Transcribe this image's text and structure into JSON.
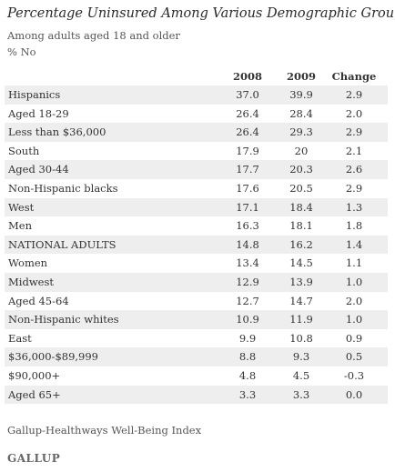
{
  "chart_data": {
    "type": "table",
    "title": "Percentage Uninsured Among Various Demographic Groups",
    "subtitle": "Among adults aged 18 and older",
    "unit": "% No",
    "columns": [
      "2008",
      "2009",
      "Change"
    ],
    "rows": [
      {
        "label": "Hispanics",
        "values": [
          "37.0",
          "39.9",
          "2.9"
        ]
      },
      {
        "label": "Aged 18-29",
        "values": [
          "26.4",
          "28.4",
          "2.0"
        ]
      },
      {
        "label": "Less than $36,000",
        "values": [
          "26.4",
          "29.3",
          "2.9"
        ]
      },
      {
        "label": "South",
        "values": [
          "17.9",
          "20",
          "2.1"
        ]
      },
      {
        "label": "Aged 30-44",
        "values": [
          "17.7",
          "20.3",
          "2.6"
        ]
      },
      {
        "label": "Non-Hispanic blacks",
        "values": [
          "17.6",
          "20.5",
          "2.9"
        ]
      },
      {
        "label": "West",
        "values": [
          "17.1",
          "18.4",
          "1.3"
        ]
      },
      {
        "label": "Men",
        "values": [
          "16.3",
          "18.1",
          "1.8"
        ]
      },
      {
        "label": "NATIONAL ADULTS",
        "values": [
          "14.8",
          "16.2",
          "1.4"
        ]
      },
      {
        "label": "Women",
        "values": [
          "13.4",
          "14.5",
          "1.1"
        ]
      },
      {
        "label": "Midwest",
        "values": [
          "12.9",
          "13.9",
          "1.0"
        ]
      },
      {
        "label": "Aged 45-64",
        "values": [
          "12.7",
          "14.7",
          "2.0"
        ]
      },
      {
        "label": "Non-Hispanic whites",
        "values": [
          "10.9",
          "11.9",
          "1.0"
        ]
      },
      {
        "label": "East",
        "values": [
          "9.9",
          "10.8",
          "0.9"
        ]
      },
      {
        "label": "$36,000-$89,999",
        "values": [
          "8.8",
          "9.3",
          "0.5"
        ]
      },
      {
        "label": "$90,000+",
        "values": [
          "4.8",
          "4.5",
          "-0.3"
        ]
      },
      {
        "label": "Aged 65+",
        "values": [
          "3.3",
          "3.3",
          "0.0"
        ]
      }
    ],
    "source": "Gallup-Healthways Well-Being Index",
    "logo": "GALLUP"
  },
  "colors": {
    "shaded_row": "#eeeeee",
    "text": "#333333"
  }
}
